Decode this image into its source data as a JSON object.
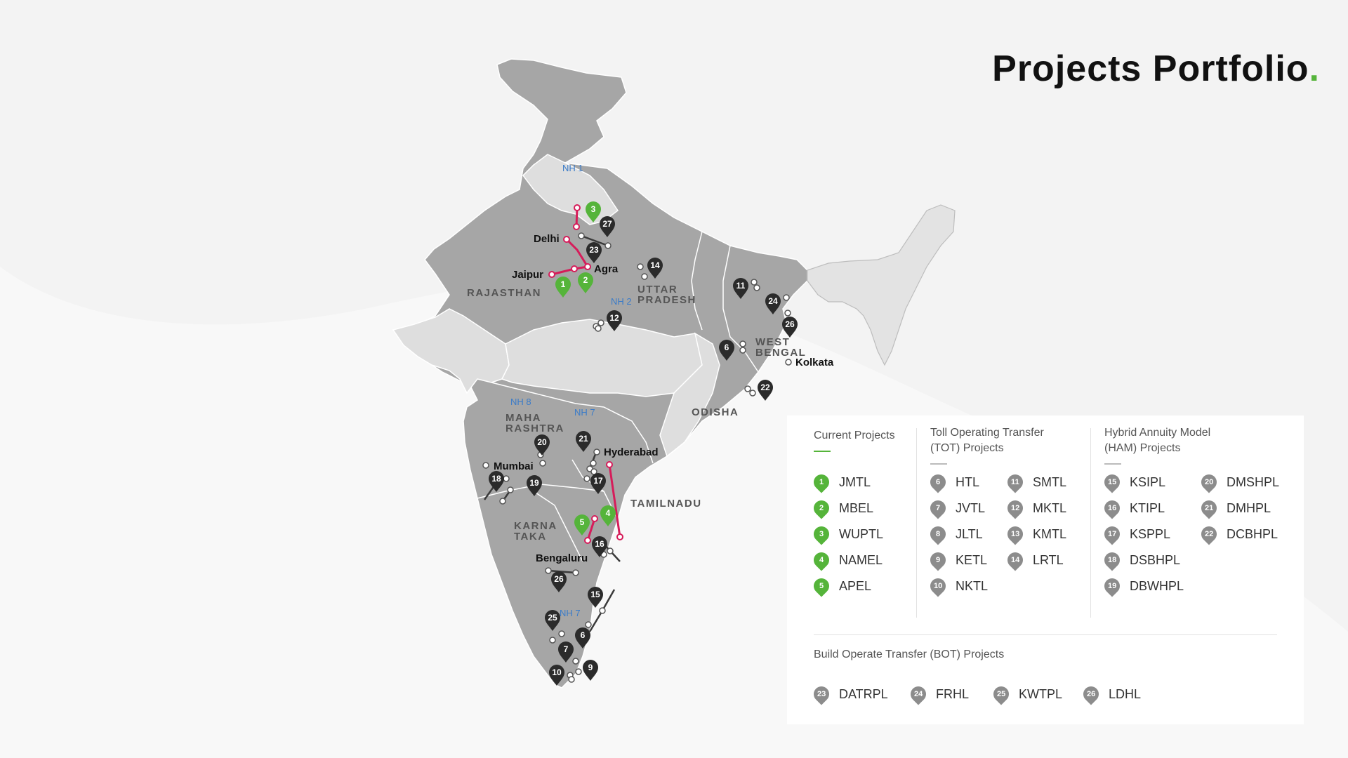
{
  "title": "Projects Portfolio",
  "colors": {
    "current": "#55b43a",
    "other": "#8c8c8c",
    "route": "#d61c5a",
    "state_dark": "#a6a6a6",
    "state_light": "#dedede"
  },
  "map": {
    "labels": {
      "rajasthan": "RAJASTHAN",
      "uttar_pradesh_1": "UTTAR",
      "uttar_pradesh_2": "PRADESH",
      "west_bengal_1": "WEST",
      "west_bengal_2": "BENGAL",
      "odisha": "ODISHA",
      "maharashtra_1": "MAHA",
      "maharashtra_2": "RASHTRA",
      "karnataka_1": "KARNA",
      "karnataka_2": "TAKA",
      "tamilnadu": "TAMILNADU"
    },
    "highways": [
      "NH 1",
      "NH 2",
      "NH 8",
      "NH 7",
      "NH 7"
    ],
    "cities": [
      "Delhi",
      "Agra",
      "Jaipur",
      "Kolkata",
      "Hyderabad",
      "Mumbai",
      "Bengaluru"
    ],
    "markers_green": [
      "1",
      "2",
      "3",
      "4",
      "5"
    ],
    "markers_dark": [
      "27",
      "23",
      "14",
      "12",
      "11",
      "24",
      "26",
      "6",
      "22",
      "20",
      "21",
      "18",
      "19",
      "17",
      "16",
      "26",
      "15",
      "25",
      "6",
      "7",
      "9",
      "10"
    ]
  },
  "legend": {
    "current": {
      "heading": "Current Projects",
      "items": [
        {
          "n": "1",
          "label": "JMTL"
        },
        {
          "n": "2",
          "label": "MBEL"
        },
        {
          "n": "3",
          "label": "WUPTL"
        },
        {
          "n": "4",
          "label": "NAMEL"
        },
        {
          "n": "5",
          "label": "APEL"
        }
      ]
    },
    "tot": {
      "heading_1": "Toll Operating Transfer",
      "heading_2": "(TOT) Projects",
      "col1": [
        {
          "n": "6",
          "label": "HTL"
        },
        {
          "n": "7",
          "label": "JVTL"
        },
        {
          "n": "8",
          "label": "JLTL"
        },
        {
          "n": "9",
          "label": "KETL"
        },
        {
          "n": "10",
          "label": "NKTL"
        }
      ],
      "col2": [
        {
          "n": "11",
          "label": "SMTL"
        },
        {
          "n": "12",
          "label": "MKTL"
        },
        {
          "n": "13",
          "label": "KMTL"
        },
        {
          "n": "14",
          "label": "LRTL"
        }
      ]
    },
    "ham": {
      "heading_1": "Hybrid Annuity Model",
      "heading_2": "(HAM) Projects",
      "col1": [
        {
          "n": "15",
          "label": "KSIPL"
        },
        {
          "n": "16",
          "label": "KTIPL"
        },
        {
          "n": "17",
          "label": "KSPPL"
        },
        {
          "n": "18",
          "label": "DSBHPL"
        },
        {
          "n": "19",
          "label": "DBWHPL"
        }
      ],
      "col2": [
        {
          "n": "20",
          "label": "DMSHPL"
        },
        {
          "n": "21",
          "label": "DMHPL"
        },
        {
          "n": "22",
          "label": "DCBHPL"
        }
      ]
    },
    "bot": {
      "heading": "Build Operate Transfer (BOT) Projects",
      "items": [
        {
          "n": "23",
          "label": "DATRPL"
        },
        {
          "n": "24",
          "label": "FRHL"
        },
        {
          "n": "25",
          "label": "KWTPL"
        },
        {
          "n": "26",
          "label": "LDHL"
        }
      ]
    }
  }
}
